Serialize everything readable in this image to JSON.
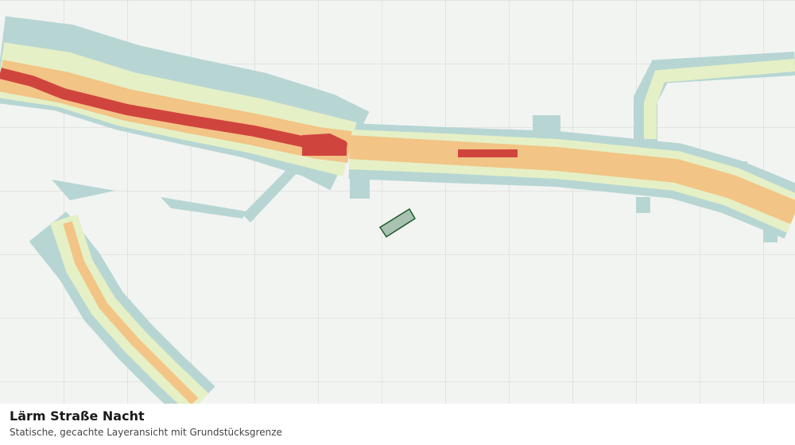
{
  "map": {
    "title": "Lärm Straße Nacht",
    "subtitle": "Statische, gecachte Layeransicht mit Grundstücksgrenze"
  }
}
